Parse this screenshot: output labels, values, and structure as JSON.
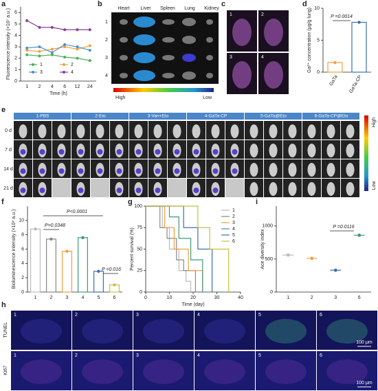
{
  "chart_data": [
    {
      "type": "line",
      "label": "a",
      "categories": [
        "1",
        "2",
        "4",
        "6",
        "12",
        "24"
      ],
      "xlabel": "Time (h)",
      "ylabel": "Fluorescence intensity (×10⁷ a.u.)",
      "ylim": [
        0,
        6.5
      ],
      "yticks": [
        0,
        1,
        2,
        3,
        4,
        5,
        6
      ],
      "series": [
        {
          "name": "1",
          "color": "#4caf50",
          "values": [
            2.3,
            2.2,
            2.3,
            2.1,
            2.0,
            1.8
          ]
        },
        {
          "name": "2",
          "color": "#f0a040",
          "values": [
            2.7,
            2.6,
            2.8,
            3.0,
            2.8,
            3.1
          ]
        },
        {
          "name": "3",
          "color": "#4a90c8",
          "values": [
            2.9,
            3.0,
            2.5,
            3.2,
            3.0,
            2.7
          ]
        },
        {
          "name": "4",
          "color": "#8a3a9a",
          "values": [
            5.3,
            4.7,
            4.7,
            4.5,
            4.5,
            4.5
          ]
        }
      ]
    },
    {
      "type": "bar",
      "label": "d",
      "categories": [
        "GaTa",
        "GaTa-CP"
      ],
      "values": [
        1.5,
        7.8
      ],
      "colors": [
        "#f0a040",
        "#3a6fb5"
      ],
      "ylabel": "Ga³⁺ concentration (μg/g lung)",
      "ylim": [
        0,
        10
      ],
      "yticks": [
        0,
        5,
        10
      ],
      "annotations": [
        "P =0.0014"
      ]
    },
    {
      "type": "bar",
      "label": "f",
      "categories": [
        "1",
        "2",
        "3",
        "4",
        "5",
        "6"
      ],
      "values": [
        8.8,
        7.4,
        5.7,
        7.6,
        2.9,
        1.0
      ],
      "colors": [
        "#bbbbbb",
        "#888888",
        "#f0a040",
        "#3a9a7a",
        "#3a6fb5",
        "#c8c040"
      ],
      "ylabel": "Bioluminescence intensity (×10⁸ a.u.)",
      "ylim": [
        0,
        12
      ],
      "yticks": [
        0,
        2,
        4,
        6,
        8,
        10
      ],
      "annotations": [
        "P<0.0001",
        "P=0.0348",
        "P =0.016"
      ]
    },
    {
      "type": "step",
      "label": "g",
      "xlabel": "Time (day)",
      "ylabel": "Percent survival (%)",
      "xlim": [
        0,
        40
      ],
      "xticks": [
        0,
        10,
        20,
        30,
        40
      ],
      "ylim": [
        0,
        100
      ],
      "yticks": [
        0,
        25,
        50,
        75,
        100
      ],
      "series": [
        {
          "name": "1",
          "color": "#bbbbbb",
          "x": [
            0,
            7,
            10,
            14,
            17,
            19
          ],
          "values": [
            100,
            75,
            50,
            25,
            12.5,
            0
          ]
        },
        {
          "name": "2",
          "color": "#888888",
          "x": [
            0,
            6,
            9,
            13,
            16,
            21
          ],
          "values": [
            100,
            75,
            62.5,
            37.5,
            25,
            0
          ]
        },
        {
          "name": "3",
          "color": "#f0a040",
          "x": [
            0,
            8,
            12,
            18,
            24
          ],
          "values": [
            100,
            75,
            50,
            25,
            0
          ]
        },
        {
          "name": "4",
          "color": "#3a9a7a",
          "x": [
            0,
            10,
            14,
            19,
            24
          ],
          "values": [
            100,
            87.5,
            62.5,
            37.5,
            0
          ]
        },
        {
          "name": "5",
          "color": "#3a6fb5",
          "x": [
            0,
            16,
            22,
            28
          ],
          "values": [
            100,
            75,
            50,
            0
          ]
        },
        {
          "name": "6",
          "color": "#c8c040",
          "x": [
            0,
            22,
            27,
            35
          ],
          "values": [
            100,
            75,
            50,
            0
          ]
        }
      ]
    },
    {
      "type": "dot",
      "label": "i",
      "categories": [
        "1",
        "2",
        "3",
        "6"
      ],
      "values": [
        560,
        510,
        330,
        860
      ],
      "colors": [
        "#bbbbbb",
        "#f0a040",
        "#3a6fb5",
        "#3a9a7a"
      ],
      "ylabel": "Ace diversity index",
      "ylim": [
        0,
        1300
      ],
      "yticks": [
        0,
        500,
        1000
      ],
      "annotations": [
        "P =0.0116"
      ]
    }
  ],
  "images": {
    "b": {
      "label": "b",
      "organs": [
        "Heart",
        "Liver",
        "Spleen",
        "Lung",
        "Kidney"
      ],
      "rows": [
        "1",
        "2",
        "3",
        "4"
      ],
      "high": "High",
      "low": "Low"
    },
    "c": {
      "label": "c",
      "tiles": [
        "1",
        "2",
        "3",
        "4"
      ]
    },
    "e": {
      "label": "e",
      "groups": [
        "1-PBS",
        "2-Eto",
        "3-Van+Eto",
        "4-GaTa-CP",
        "5-GaTa@Eto",
        "6-GaTa-CP@Eto"
      ],
      "days": [
        "0 d",
        "7 d",
        "14 d",
        "21 d"
      ],
      "high": "High",
      "low": "Low"
    },
    "h": {
      "label": "h",
      "rows": [
        "TUNEL",
        "Ki67"
      ],
      "tiles": [
        "1",
        "2",
        "3",
        "4",
        "5",
        "6"
      ],
      "scale": "100 μm"
    }
  }
}
